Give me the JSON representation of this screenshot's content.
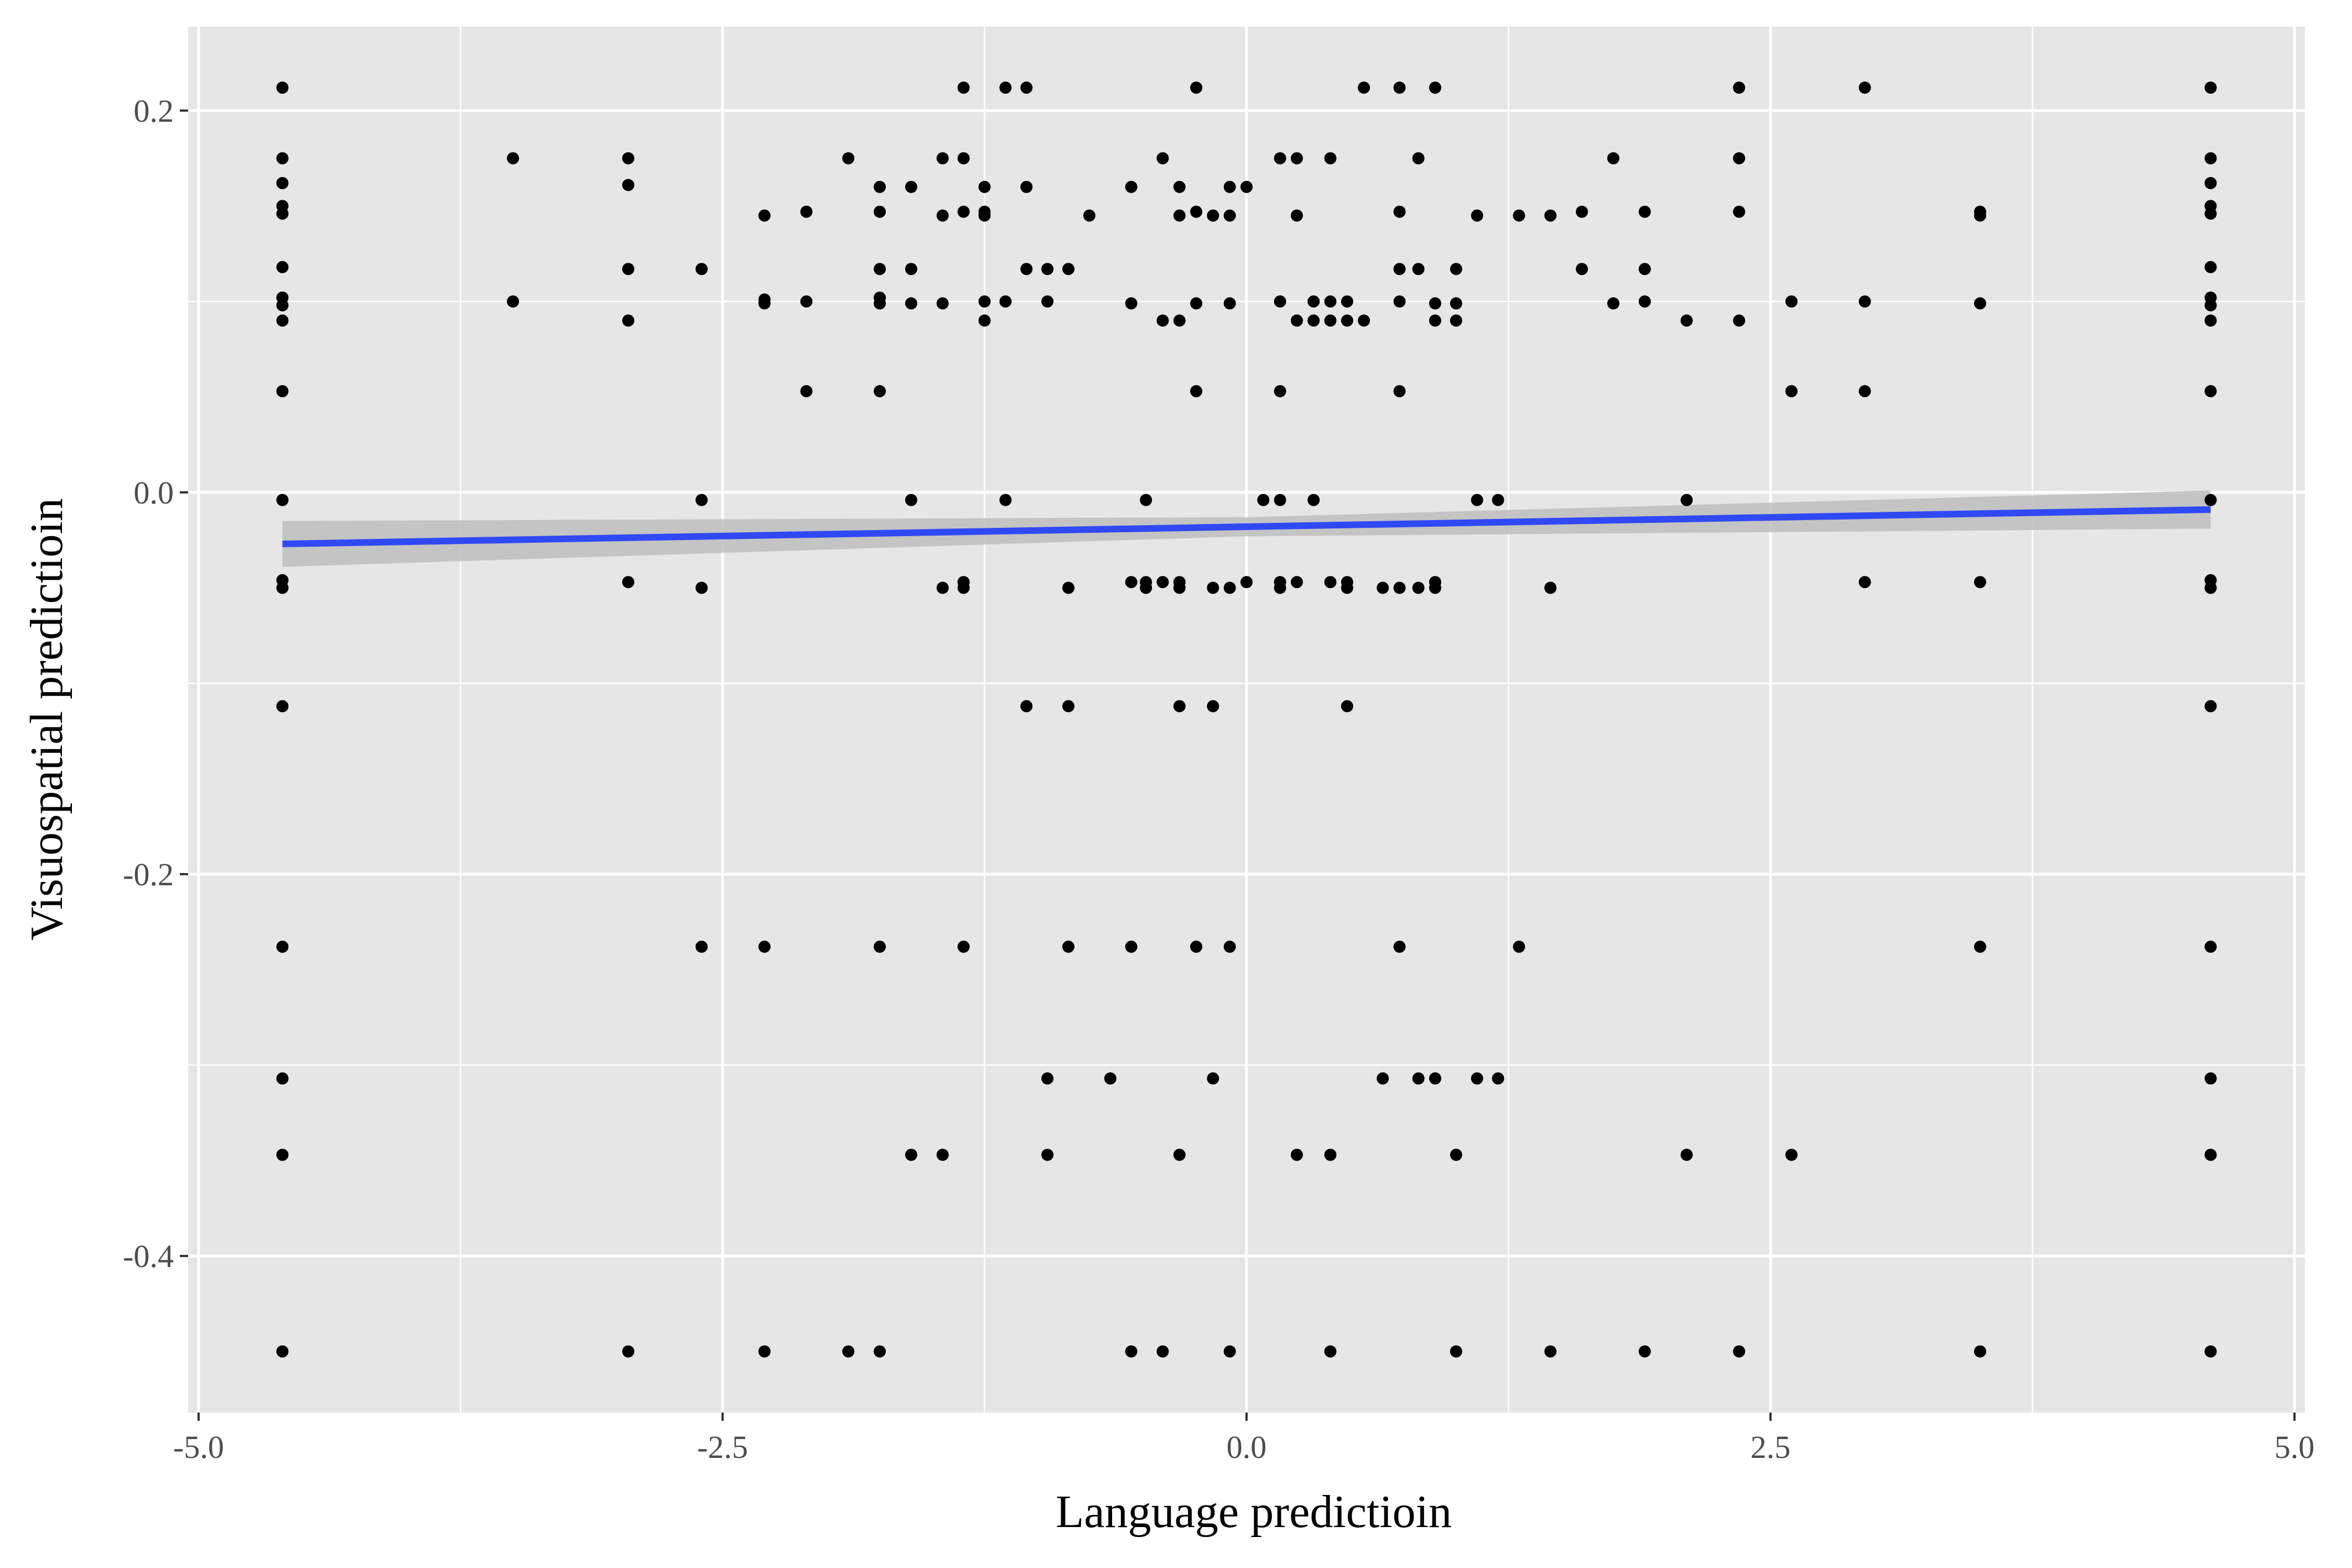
{
  "chart_data": {
    "type": "scatter",
    "title": "",
    "xlabel": "Language predictioin",
    "ylabel": "Visuospatial predictioin",
    "xlim": [
      -5.05,
      5.05
    ],
    "ylim": [
      -0.482,
      0.244
    ],
    "x_ticks": [
      {
        "value": -5.0,
        "label": "-5.0"
      },
      {
        "value": -2.5,
        "label": "-2.5"
      },
      {
        "value": 0.0,
        "label": "0.0"
      },
      {
        "value": 2.5,
        "label": "2.5"
      },
      {
        "value": 5.0,
        "label": "5.0"
      }
    ],
    "y_ticks": [
      {
        "value": 0.2,
        "label": "0.2"
      },
      {
        "value": 0.0,
        "label": "0.0"
      },
      {
        "value": -0.2,
        "label": "-0.2"
      },
      {
        "value": -0.4,
        "label": "-0.4"
      }
    ],
    "grid": true,
    "legend": "none",
    "colors": {
      "panel": "#e6e6e6",
      "grid": "#ffffff",
      "points": "#000000",
      "fit_line": "#3049f5",
      "ci_band": "#bdbdbd"
    },
    "fit_line": {
      "x": [
        -4.6,
        4.6
      ],
      "y": [
        -0.027,
        -0.009
      ]
    },
    "ci_band": {
      "x": [
        -4.6,
        0.0,
        4.6
      ],
      "lower": [
        -0.039,
        -0.023,
        -0.019
      ],
      "upper": [
        -0.015,
        -0.013,
        0.001
      ]
    },
    "points": [
      [
        -4.6,
        0.212
      ],
      [
        -4.6,
        0.175
      ],
      [
        -4.6,
        0.162
      ],
      [
        -4.6,
        0.15
      ],
      [
        -4.6,
        0.146
      ],
      [
        -4.6,
        0.118
      ],
      [
        -4.6,
        0.102
      ],
      [
        -4.6,
        0.098
      ],
      [
        -4.6,
        0.09
      ],
      [
        -4.6,
        0.053
      ],
      [
        -4.6,
        -0.004
      ],
      [
        -4.6,
        -0.046
      ],
      [
        -4.6,
        -0.05
      ],
      [
        -4.6,
        -0.112
      ],
      [
        -4.6,
        -0.238
      ],
      [
        -4.6,
        -0.307
      ],
      [
        -4.6,
        -0.347
      ],
      [
        -4.6,
        -0.45
      ],
      [
        4.6,
        0.212
      ],
      [
        4.6,
        0.175
      ],
      [
        4.6,
        0.162
      ],
      [
        4.6,
        0.15
      ],
      [
        4.6,
        0.146
      ],
      [
        4.6,
        0.118
      ],
      [
        4.6,
        0.102
      ],
      [
        4.6,
        0.098
      ],
      [
        4.6,
        0.09
      ],
      [
        4.6,
        0.053
      ],
      [
        4.6,
        -0.004
      ],
      [
        4.6,
        -0.046
      ],
      [
        4.6,
        -0.05
      ],
      [
        4.6,
        -0.112
      ],
      [
        4.6,
        -0.238
      ],
      [
        4.6,
        -0.307
      ],
      [
        4.6,
        -0.347
      ],
      [
        4.6,
        -0.45
      ],
      [
        -3.5,
        0.175
      ],
      [
        -3.5,
        0.1
      ],
      [
        -2.95,
        0.175
      ],
      [
        -2.95,
        0.161
      ],
      [
        -2.95,
        0.117
      ],
      [
        -2.95,
        0.09
      ],
      [
        -2.95,
        -0.047
      ],
      [
        -2.95,
        -0.45
      ],
      [
        -2.6,
        0.117
      ],
      [
        -2.6,
        -0.004
      ],
      [
        -2.6,
        -0.05
      ],
      [
        -2.6,
        -0.238
      ],
      [
        -2.3,
        0.145
      ],
      [
        -2.3,
        0.101
      ],
      [
        -2.3,
        0.099
      ],
      [
        -2.3,
        -0.238
      ],
      [
        -2.3,
        -0.45
      ],
      [
        -2.1,
        0.147
      ],
      [
        -2.1,
        0.1
      ],
      [
        -2.1,
        0.053
      ],
      [
        -1.9,
        0.175
      ],
      [
        -1.9,
        -0.45
      ],
      [
        -1.75,
        0.16
      ],
      [
        -1.75,
        0.147
      ],
      [
        -1.75,
        0.117
      ],
      [
        -1.75,
        0.102
      ],
      [
        -1.75,
        0.099
      ],
      [
        -1.75,
        0.053
      ],
      [
        -1.75,
        -0.238
      ],
      [
        -1.75,
        -0.45
      ],
      [
        -1.6,
        0.16
      ],
      [
        -1.6,
        0.117
      ],
      [
        -1.6,
        0.099
      ],
      [
        -1.6,
        -0.004
      ],
      [
        -1.6,
        -0.347
      ],
      [
        -1.45,
        0.175
      ],
      [
        -1.45,
        0.145
      ],
      [
        -1.45,
        0.099
      ],
      [
        -1.45,
        -0.05
      ],
      [
        -1.45,
        -0.347
      ],
      [
        -1.35,
        0.212
      ],
      [
        -1.35,
        0.175
      ],
      [
        -1.35,
        0.147
      ],
      [
        -1.35,
        -0.047
      ],
      [
        -1.35,
        -0.05
      ],
      [
        -1.35,
        -0.238
      ],
      [
        -1.25,
        0.16
      ],
      [
        -1.25,
        0.147
      ],
      [
        -1.25,
        0.145
      ],
      [
        -1.25,
        0.1
      ],
      [
        -1.25,
        0.09
      ],
      [
        -1.15,
        0.212
      ],
      [
        -1.15,
        0.1
      ],
      [
        -1.15,
        -0.004
      ],
      [
        -1.05,
        0.212
      ],
      [
        -1.05,
        0.16
      ],
      [
        -1.05,
        0.117
      ],
      [
        -1.05,
        -0.112
      ],
      [
        -0.95,
        0.117
      ],
      [
        -0.95,
        0.1
      ],
      [
        -0.95,
        -0.307
      ],
      [
        -0.95,
        -0.347
      ],
      [
        -0.85,
        0.117
      ],
      [
        -0.85,
        -0.05
      ],
      [
        -0.85,
        -0.112
      ],
      [
        -0.85,
        -0.238
      ],
      [
        -0.75,
        0.145
      ],
      [
        -0.65,
        -0.307
      ],
      [
        -0.55,
        0.16
      ],
      [
        -0.55,
        0.099
      ],
      [
        -0.55,
        -0.047
      ],
      [
        -0.55,
        -0.238
      ],
      [
        -0.55,
        -0.45
      ],
      [
        -0.48,
        -0.004
      ],
      [
        -0.48,
        -0.047
      ],
      [
        -0.48,
        -0.05
      ],
      [
        -0.4,
        0.175
      ],
      [
        -0.4,
        0.09
      ],
      [
        -0.4,
        -0.047
      ],
      [
        -0.4,
        -0.45
      ],
      [
        -0.32,
        0.16
      ],
      [
        -0.32,
        0.145
      ],
      [
        -0.32,
        0.09
      ],
      [
        -0.32,
        -0.047
      ],
      [
        -0.32,
        -0.05
      ],
      [
        -0.32,
        -0.112
      ],
      [
        -0.32,
        -0.347
      ],
      [
        -0.24,
        0.212
      ],
      [
        -0.24,
        0.147
      ],
      [
        -0.24,
        0.099
      ],
      [
        -0.24,
        0.053
      ],
      [
        -0.24,
        -0.238
      ],
      [
        -0.16,
        0.145
      ],
      [
        -0.16,
        -0.05
      ],
      [
        -0.16,
        -0.112
      ],
      [
        -0.16,
        -0.307
      ],
      [
        -0.08,
        0.16
      ],
      [
        -0.08,
        0.145
      ],
      [
        -0.08,
        0.099
      ],
      [
        -0.08,
        -0.05
      ],
      [
        -0.08,
        -0.238
      ],
      [
        -0.08,
        -0.45
      ],
      [
        0.0,
        0.16
      ],
      [
        0.0,
        -0.047
      ],
      [
        0.08,
        -0.004
      ],
      [
        0.16,
        0.175
      ],
      [
        0.16,
        0.1
      ],
      [
        0.16,
        0.053
      ],
      [
        0.16,
        -0.004
      ],
      [
        0.16,
        -0.047
      ],
      [
        0.16,
        -0.05
      ],
      [
        0.24,
        0.175
      ],
      [
        0.24,
        0.145
      ],
      [
        0.24,
        0.09
      ],
      [
        0.24,
        -0.047
      ],
      [
        0.24,
        -0.347
      ],
      [
        0.32,
        0.1
      ],
      [
        0.32,
        0.09
      ],
      [
        0.32,
        -0.004
      ],
      [
        0.4,
        0.175
      ],
      [
        0.4,
        0.1
      ],
      [
        0.4,
        0.09
      ],
      [
        0.4,
        -0.047
      ],
      [
        0.4,
        -0.347
      ],
      [
        0.4,
        -0.45
      ],
      [
        0.48,
        0.1
      ],
      [
        0.48,
        0.09
      ],
      [
        0.48,
        -0.047
      ],
      [
        0.48,
        -0.05
      ],
      [
        0.48,
        -0.112
      ],
      [
        0.56,
        0.212
      ],
      [
        0.56,
        0.09
      ],
      [
        0.65,
        -0.05
      ],
      [
        0.65,
        -0.307
      ],
      [
        0.73,
        0.212
      ],
      [
        0.73,
        0.147
      ],
      [
        0.73,
        0.117
      ],
      [
        0.73,
        0.1
      ],
      [
        0.73,
        0.053
      ],
      [
        0.73,
        -0.05
      ],
      [
        0.73,
        -0.238
      ],
      [
        0.82,
        0.175
      ],
      [
        0.82,
        0.117
      ],
      [
        0.82,
        -0.05
      ],
      [
        0.82,
        -0.307
      ],
      [
        0.9,
        0.212
      ],
      [
        0.9,
        0.099
      ],
      [
        0.9,
        0.09
      ],
      [
        0.9,
        -0.047
      ],
      [
        0.9,
        -0.05
      ],
      [
        0.9,
        -0.307
      ],
      [
        1.0,
        0.117
      ],
      [
        1.0,
        0.099
      ],
      [
        1.0,
        0.09
      ],
      [
        1.0,
        -0.347
      ],
      [
        1.0,
        -0.45
      ],
      [
        1.1,
        0.145
      ],
      [
        1.1,
        -0.004
      ],
      [
        1.1,
        -0.307
      ],
      [
        1.2,
        -0.004
      ],
      [
        1.2,
        -0.307
      ],
      [
        1.3,
        0.145
      ],
      [
        1.3,
        -0.238
      ],
      [
        1.45,
        0.145
      ],
      [
        1.45,
        -0.05
      ],
      [
        1.45,
        -0.45
      ],
      [
        1.6,
        0.147
      ],
      [
        1.6,
        0.117
      ],
      [
        1.75,
        0.175
      ],
      [
        1.75,
        0.099
      ],
      [
        1.9,
        0.147
      ],
      [
        1.9,
        0.117
      ],
      [
        1.9,
        0.1
      ],
      [
        1.9,
        -0.45
      ],
      [
        2.1,
        0.09
      ],
      [
        2.1,
        -0.004
      ],
      [
        2.1,
        -0.347
      ],
      [
        2.35,
        0.212
      ],
      [
        2.35,
        0.175
      ],
      [
        2.35,
        0.147
      ],
      [
        2.35,
        0.09
      ],
      [
        2.35,
        -0.45
      ],
      [
        2.6,
        0.1
      ],
      [
        2.6,
        0.053
      ],
      [
        2.6,
        -0.347
      ],
      [
        2.95,
        0.212
      ],
      [
        2.95,
        0.1
      ],
      [
        2.95,
        0.053
      ],
      [
        2.95,
        -0.047
      ],
      [
        3.5,
        0.147
      ],
      [
        3.5,
        0.145
      ],
      [
        3.5,
        0.099
      ],
      [
        3.5,
        -0.047
      ],
      [
        3.5,
        -0.238
      ],
      [
        3.5,
        -0.45
      ]
    ]
  }
}
